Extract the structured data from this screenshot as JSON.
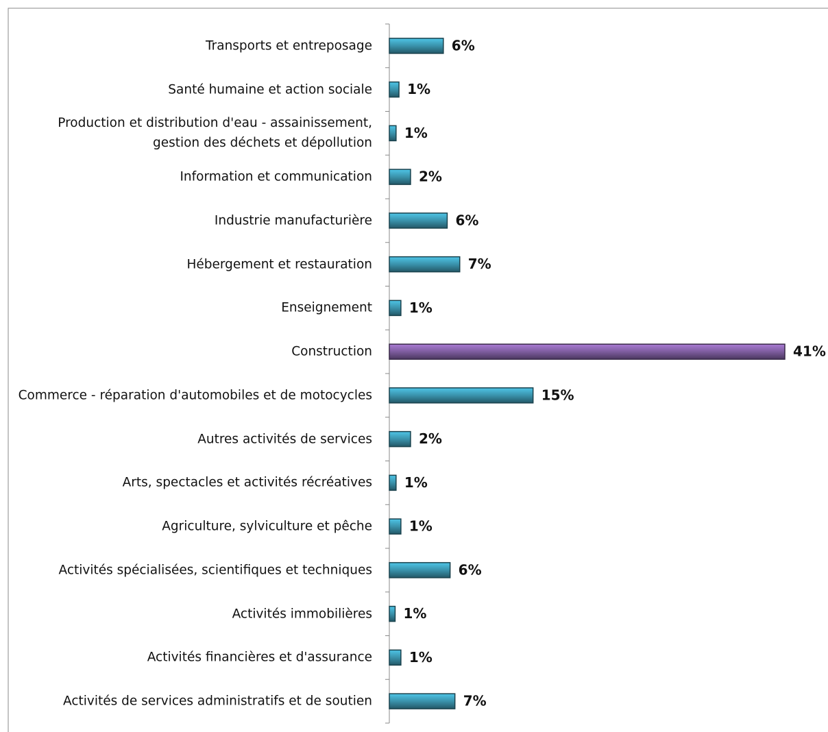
{
  "chart_data": {
    "type": "barh",
    "categories": [
      "Transports et entreposage",
      "Santé humaine et action sociale",
      "Production et distribution d'eau - assainissement, gestion des déchets et dépollution",
      "Information et communication",
      "Industrie manufacturière",
      "Hébergement et restauration",
      "Enseignement",
      "Construction",
      "Commerce - réparation d'automobiles et de motocycles",
      "Autres activités de services",
      "Arts, spectacles et activités récréatives",
      "Agriculture, sylviculture et pêche",
      "Activités spécialisées, scientifiques et techniques",
      "Activités immobilières",
      "Activités financières et d'assurance",
      "Activités de services administratifs et de soutien"
    ],
    "values": [
      5.6,
      1.0,
      0.7,
      2.2,
      6.0,
      7.3,
      1.2,
      41,
      14.9,
      2.2,
      0.7,
      1.2,
      6.3,
      0.6,
      1.2,
      6.8
    ],
    "value_labels": [
      "6%",
      "1%",
      "1%",
      "2%",
      "6%",
      "7%",
      "1%",
      "41%",
      "15%",
      "2%",
      "1%",
      "1%",
      "6%",
      "1%",
      "1%",
      "7%"
    ],
    "colors": [
      "#3a92ab",
      "#3a92ab",
      "#3a92ab",
      "#3a92ab",
      "#3a92ab",
      "#3a92ab",
      "#3a92ab",
      "#7d5c9e",
      "#3a92ab",
      "#3a92ab",
      "#3a92ab",
      "#3a92ab",
      "#3a92ab",
      "#3a92ab",
      "#3a92ab",
      "#3a92ab"
    ]
  }
}
